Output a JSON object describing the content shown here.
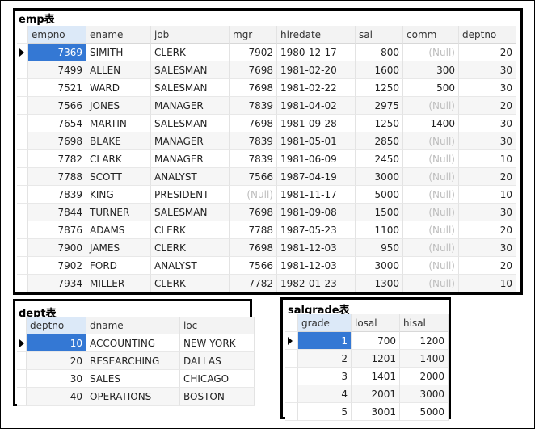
{
  "tables": [
    {
      "title": "emp表",
      "columns": [
        "empno",
        "ename",
        "job",
        "mgr",
        "hiredate",
        "sal",
        "comm",
        "deptno"
      ],
      "rows": [
        [
          "7369",
          "SIMITH",
          "CLERK",
          "7902",
          "1980-12-17",
          "800",
          "(Null)",
          "20"
        ],
        [
          "7499",
          "ALLEN",
          "SALESMAN",
          "7698",
          "1981-02-20",
          "1600",
          "300",
          "30"
        ],
        [
          "7521",
          "WARD",
          "SALESMAN",
          "7698",
          "1981-02-22",
          "1250",
          "500",
          "30"
        ],
        [
          "7566",
          "JONES",
          "MANAGER",
          "7839",
          "1981-04-02",
          "2975",
          "(Null)",
          "20"
        ],
        [
          "7654",
          "MARTIN",
          "SALESMAN",
          "7698",
          "1981-09-28",
          "1250",
          "1400",
          "30"
        ],
        [
          "7698",
          "BLAKE",
          "MANAGER",
          "7839",
          "1981-05-01",
          "2850",
          "(Null)",
          "30"
        ],
        [
          "7782",
          "CLARK",
          "MANAGER",
          "7839",
          "1981-06-09",
          "2450",
          "(Null)",
          "10"
        ],
        [
          "7788",
          "SCOTT",
          "ANALYST",
          "7566",
          "1987-04-19",
          "3000",
          "(Null)",
          "20"
        ],
        [
          "7839",
          "KING",
          "PRESIDENT",
          "(Null)",
          "1981-11-17",
          "5000",
          "(Null)",
          "10"
        ],
        [
          "7844",
          "TURNER",
          "SALESMAN",
          "7698",
          "1981-09-08",
          "1500",
          "(Null)",
          "30"
        ],
        [
          "7876",
          "ADAMS",
          "CLERK",
          "7788",
          "1987-05-23",
          "1100",
          "(Null)",
          "20"
        ],
        [
          "7900",
          "JAMES",
          "CLERK",
          "7698",
          "1981-12-03",
          "950",
          "(Null)",
          "30"
        ],
        [
          "7902",
          "FORD",
          "ANALYST",
          "7566",
          "1981-12-03",
          "3000",
          "(Null)",
          "20"
        ],
        [
          "7934",
          "MILLER",
          "CLERK",
          "7782",
          "1982-01-23",
          "1300",
          "(Null)",
          "10"
        ]
      ]
    },
    {
      "title": "dept表",
      "columns": [
        "deptno",
        "dname",
        "loc"
      ],
      "rows": [
        [
          "10",
          "ACCOUNTING",
          "NEW YORK"
        ],
        [
          "20",
          "RESEARCHING",
          "DALLAS"
        ],
        [
          "30",
          "SALES",
          "CHICAGO"
        ],
        [
          "40",
          "OPERATIONS",
          "BOSTON"
        ]
      ]
    },
    {
      "title": "salgrade表",
      "columns": [
        "grade",
        "losal",
        "hisal"
      ],
      "rows": [
        [
          "1",
          "700",
          "1200"
        ],
        [
          "2",
          "1201",
          "1400"
        ],
        [
          "3",
          "1401",
          "2000"
        ],
        [
          "4",
          "2001",
          "3000"
        ],
        [
          "5",
          "3001",
          "5000"
        ]
      ]
    }
  ]
}
